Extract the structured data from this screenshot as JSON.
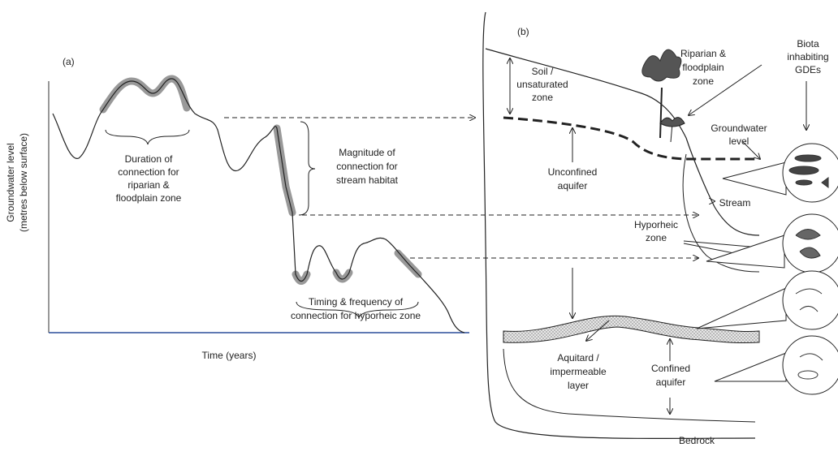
{
  "panel_a": {
    "label": "(a)",
    "y_axis_label": [
      "Groundwater level",
      "(metres below surface)"
    ],
    "x_axis_label": "Time (years)",
    "annotations": [
      {
        "lines": [
          "Duration of",
          "connection for",
          "riparian &",
          "floodplain zone"
        ]
      },
      {
        "lines": [
          "Magnitude of",
          "connection for",
          "stream habitat"
        ]
      },
      {
        "lines": [
          "Timing & frequency of",
          "connection for hyporheic zone"
        ]
      }
    ]
  },
  "panel_b": {
    "label": "(b)",
    "annotations": [
      {
        "lines": [
          "Soil /",
          "unsaturated",
          "zone"
        ]
      },
      {
        "lines": [
          "Riparian &",
          "floodplain",
          "zone"
        ]
      },
      {
        "lines": [
          "Biota",
          "inhabiting",
          "GDEs"
        ]
      },
      {
        "lines": [
          "Groundwater",
          "level"
        ]
      },
      {
        "lines": [
          "Unconfined",
          "aquifer"
        ]
      },
      {
        "lines": [
          "Stream"
        ]
      },
      {
        "lines": [
          "Hyporheic",
          "zone"
        ]
      },
      {
        "lines": [
          "Aquitard /",
          "impermeable",
          "layer"
        ]
      },
      {
        "lines": [
          "Confined",
          "aquifer"
        ]
      },
      {
        "lines": [
          "Bedrock"
        ]
      }
    ]
  }
}
